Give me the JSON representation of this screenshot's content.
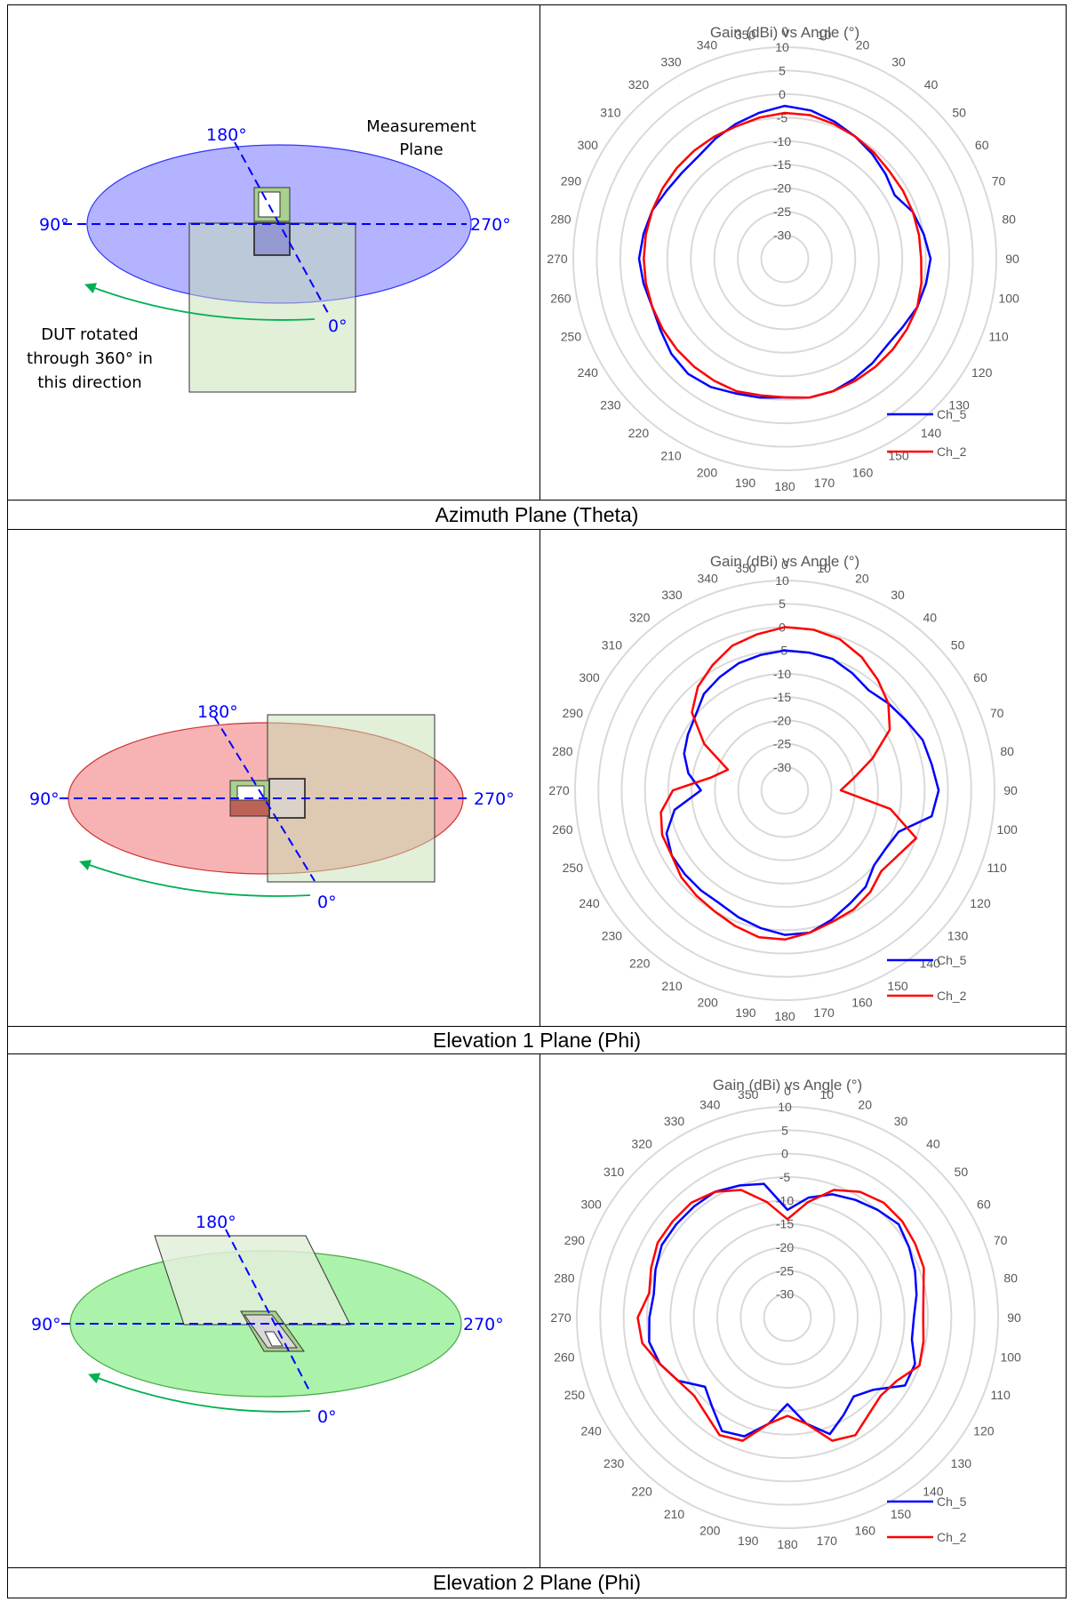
{
  "sections": [
    {
      "caption": "Azimuth Plane (Theta)",
      "diagram": {
        "label_180": "180°",
        "label_90": "90°",
        "label_270": "270°",
        "label_0": "0°",
        "measurement_label": [
          "Measurement",
          "Plane"
        ],
        "rotation_label": [
          "DUT rotated",
          "through 360° in",
          "this direction"
        ],
        "plane_color": "#9999ff"
      }
    },
    {
      "caption": "Elevation 1 Plane (Phi)",
      "diagram": {
        "label_180": "180°",
        "label_90": "90°",
        "label_270": "270°",
        "label_0": "0°",
        "plane_color": "#f5a0a0"
      }
    },
    {
      "caption": "Elevation 2 Plane (Phi)",
      "diagram": {
        "label_180": "180°",
        "label_90": "90°",
        "label_270": "270°",
        "label_0": "0°",
        "plane_color": "#9cf09c"
      }
    }
  ],
  "chart_data": [
    {
      "type": "radar",
      "title": "Gain (dBi) vs Angle (°)",
      "angles": [
        0,
        10,
        20,
        30,
        40,
        50,
        60,
        70,
        80,
        90,
        100,
        110,
        120,
        130,
        140,
        150,
        160,
        170,
        180,
        190,
        200,
        210,
        220,
        230,
        240,
        250,
        260,
        270,
        280,
        290,
        300,
        310,
        320,
        330,
        340,
        350
      ],
      "radial_ticks": [
        10,
        5,
        0,
        -5,
        -10,
        -15,
        -20,
        -25,
        -30
      ],
      "rlim": [
        -35,
        10
      ],
      "series": [
        {
          "name": "Ch_5",
          "color": "#0000ff",
          "values": [
            -2.5,
            -3,
            -4,
            -5,
            -6,
            -7,
            -8,
            -6,
            -5,
            -4,
            -4.5,
            -5,
            -6,
            -6.5,
            -6,
            -5.5,
            -5,
            -5,
            -5.5,
            -5,
            -4.5,
            -3.5,
            -3,
            -3.5,
            -4.5,
            -5,
            -4.5,
            -4,
            -4.5,
            -5,
            -6,
            -6.5,
            -6.5,
            -5.5,
            -4.5,
            -3.5
          ]
        },
        {
          "name": "Ch_2",
          "color": "#ff0000",
          "values": [
            -4,
            -4,
            -4.5,
            -5,
            -5.5,
            -6,
            -6,
            -6,
            -6,
            -6,
            -5.5,
            -5,
            -5,
            -5,
            -5,
            -5,
            -5,
            -5,
            -5.5,
            -5.5,
            -5,
            -5,
            -5,
            -5,
            -5,
            -5,
            -5,
            -5,
            -5,
            -5,
            -5,
            -5,
            -5,
            -5,
            -5,
            -4.5
          ]
        }
      ],
      "legend": "bottom-right"
    },
    {
      "type": "radar",
      "title": "Gain (dBi) vs Angle (°)",
      "angles": [
        0,
        10,
        20,
        30,
        40,
        50,
        60,
        70,
        80,
        90,
        100,
        110,
        120,
        130,
        140,
        150,
        160,
        170,
        180,
        190,
        200,
        210,
        220,
        230,
        240,
        250,
        260,
        270,
        280,
        290,
        300,
        310,
        320,
        330,
        340,
        350
      ],
      "radial_ticks": [
        10,
        5,
        0,
        -5,
        -10,
        -15,
        -20,
        -25,
        -30
      ],
      "rlim": [
        -35,
        10
      ],
      "series": [
        {
          "name": "Ch_5",
          "color": "#0000ff",
          "values": [
            -5,
            -5,
            -5,
            -6,
            -7,
            -6,
            -5,
            -3.5,
            -3,
            -2,
            -3,
            -9,
            -10,
            -10,
            -8,
            -7,
            -5.5,
            -4,
            -4,
            -5,
            -6,
            -7,
            -7,
            -7,
            -7,
            -8,
            -11,
            -17,
            -14,
            -12,
            -11,
            -10,
            -8,
            -7,
            -6,
            -5.5
          ]
        },
        {
          "name": "Ch_2",
          "color": "#ff0000",
          "values": [
            0,
            0,
            -0.5,
            -2,
            -4,
            -6,
            -9,
            -15,
            -20,
            -23,
            -12,
            -5,
            -7,
            -8,
            -6.5,
            -5.5,
            -5,
            -4,
            -3,
            -3,
            -4,
            -5,
            -5.5,
            -6,
            -7,
            -7,
            -8,
            -11,
            -19,
            -22,
            -15,
            -9,
            -6,
            -4,
            -2,
            -1
          ]
        }
      ],
      "legend": "bottom-right"
    },
    {
      "type": "radar",
      "title": "Gain (dBi) vs Angle (°)",
      "angles": [
        0,
        10,
        20,
        30,
        40,
        50,
        60,
        70,
        80,
        90,
        100,
        110,
        120,
        130,
        140,
        150,
        160,
        170,
        180,
        190,
        200,
        210,
        220,
        230,
        240,
        250,
        260,
        270,
        280,
        290,
        300,
        310,
        320,
        330,
        340,
        350
      ],
      "radial_ticks": [
        10,
        5,
        0,
        -5,
        -10,
        -15,
        -20,
        -25,
        -30
      ],
      "rlim": [
        -35,
        10
      ],
      "series": [
        {
          "name": "Ch_5",
          "color": "#0000ff",
          "values": [
            -12,
            -9,
            -7,
            -6,
            -5,
            -4,
            -5,
            -6,
            -7,
            -8,
            -8,
            -6,
            -6,
            -11,
            -13,
            -11,
            -8.5,
            -12,
            -16.5,
            -12,
            -8,
            -7,
            -10,
            -12,
            -8,
            -6,
            -5,
            -5.5,
            -6,
            -5,
            -4,
            -4,
            -4,
            -4,
            -5,
            -6
          ]
        },
        {
          "name": "Ch_2",
          "color": "#ff0000",
          "values": [
            -14,
            -10,
            -6,
            -4,
            -3,
            -3,
            -3.5,
            -4,
            -5.5,
            -6,
            -5.5,
            -5,
            -8,
            -9,
            -8,
            -6,
            -7,
            -12,
            -14,
            -12,
            -7,
            -6,
            -8,
            -9,
            -8,
            -6,
            -3.5,
            -3,
            -5,
            -4,
            -3,
            -3,
            -3,
            -4,
            -6,
            -10
          ]
        }
      ],
      "legend": "bottom-right"
    }
  ]
}
